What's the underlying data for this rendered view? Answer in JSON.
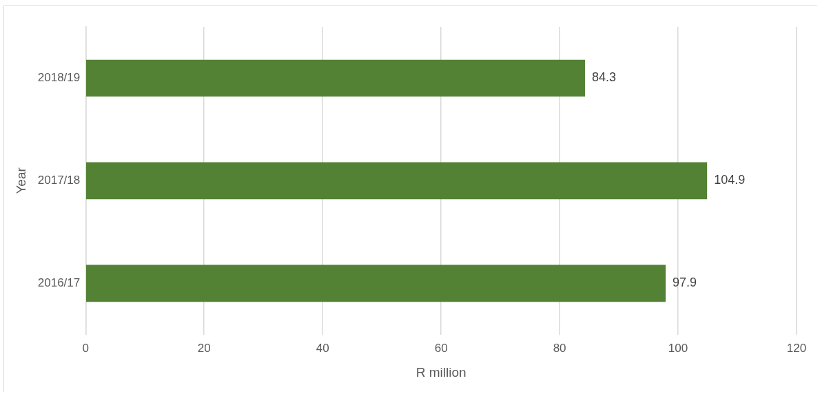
{
  "chart_data": {
    "type": "bar",
    "orientation": "horizontal",
    "xlabel": "R million",
    "ylabel": "Year",
    "categories": [
      "2018/19",
      "2017/18",
      "2016/17"
    ],
    "values": [
      84.3,
      104.9,
      97.9
    ],
    "color": "#548235",
    "xlim": [
      0,
      120
    ],
    "xticks": [
      0,
      20,
      40,
      60,
      80,
      100,
      120
    ],
    "grid": "x",
    "data_labels": true,
    "legend": false
  }
}
